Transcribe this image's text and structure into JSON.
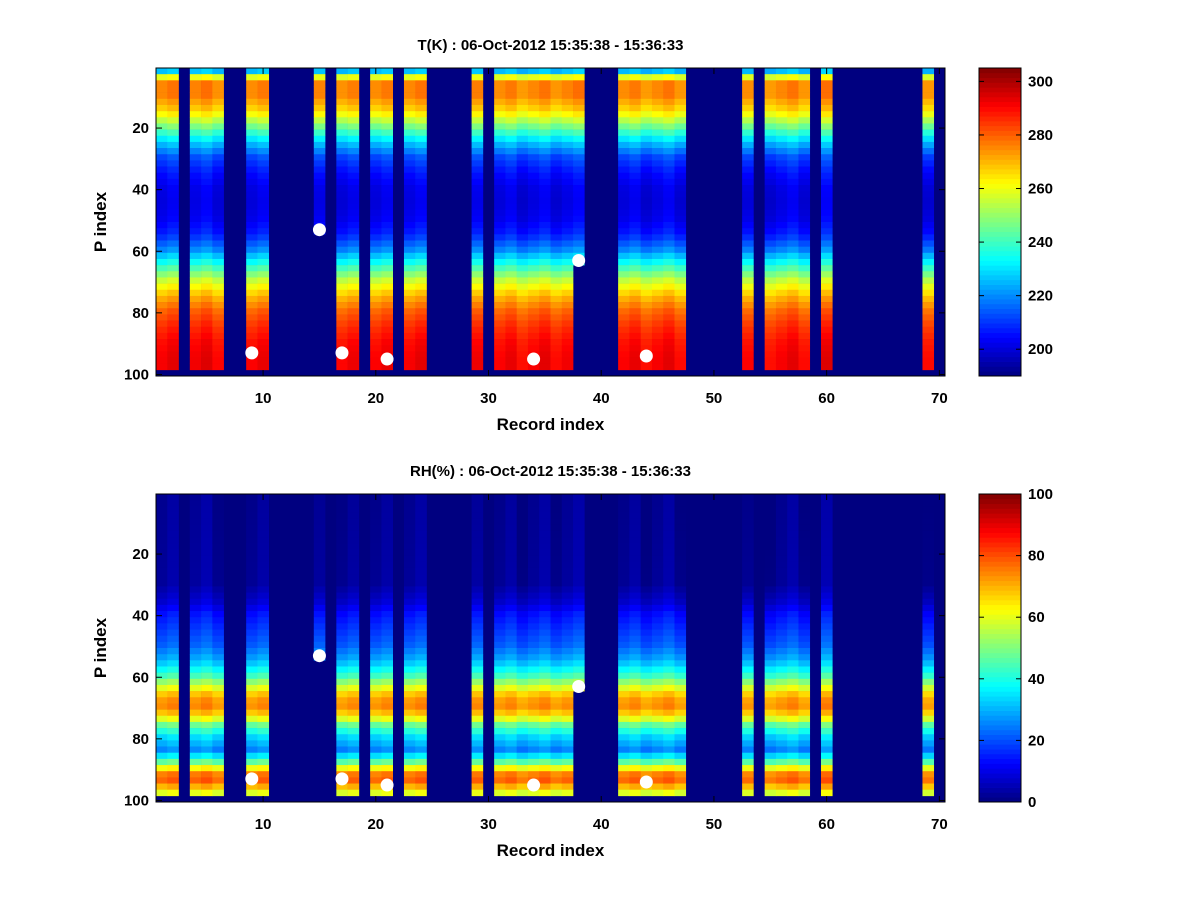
{
  "chart_data": [
    {
      "type": "heatmap",
      "title": "T(K) : 06-Oct-2012 15:35:38 - 15:36:33",
      "xlabel": "Record index",
      "ylabel": "P index",
      "xlim": [
        0.5,
        70.5
      ],
      "ylim": [
        0.5,
        100.5
      ],
      "y_reversed": true,
      "xticks": [
        10,
        20,
        30,
        40,
        50,
        60,
        70
      ],
      "yticks": [
        20,
        40,
        60,
        80,
        100
      ],
      "colormap": "jet",
      "colorbar": {
        "range": [
          190,
          305
        ],
        "ticks": [
          200,
          220,
          240,
          260,
          280,
          300
        ]
      },
      "fill_value": 190,
      "valid_records": [
        1,
        2,
        4,
        5,
        6,
        9,
        10,
        15,
        17,
        18,
        20,
        21,
        23,
        24,
        29,
        31,
        32,
        33,
        34,
        35,
        36,
        37,
        38,
        42,
        43,
        44,
        45,
        46,
        47,
        53,
        55,
        56,
        57,
        58,
        60,
        69
      ],
      "record_top_level": {
        "15": 1,
        "38": 1
      },
      "record_bottom_level": {
        "15": 53,
        "38": 63
      },
      "profile_levels": [
        1,
        5,
        10,
        15,
        20,
        25,
        30,
        35,
        40,
        45,
        50,
        55,
        60,
        65,
        70,
        75,
        80,
        85,
        90,
        95,
        98
      ],
      "profile_values": [
        210,
        276,
        276,
        266,
        247,
        228,
        213,
        206,
        202,
        201,
        203,
        208,
        220,
        238,
        256,
        270,
        280,
        286,
        290,
        292,
        292
      ],
      "markers": [
        {
          "record": 9,
          "level": 93
        },
        {
          "record": 15,
          "level": 53
        },
        {
          "record": 17,
          "level": 93
        },
        {
          "record": 21,
          "level": 95
        },
        {
          "record": 34,
          "level": 95
        },
        {
          "record": 38,
          "level": 63
        },
        {
          "record": 44,
          "level": 94
        }
      ]
    },
    {
      "type": "heatmap",
      "title": "RH(%) : 06-Oct-2012 15:35:38 - 15:36:33",
      "xlabel": "Record index",
      "ylabel": "P index",
      "xlim": [
        0.5,
        70.5
      ],
      "ylim": [
        0.5,
        100.5
      ],
      "y_reversed": true,
      "xticks": [
        10,
        20,
        30,
        40,
        50,
        60,
        70
      ],
      "yticks": [
        20,
        40,
        60,
        80,
        100
      ],
      "colormap": "jet",
      "colorbar": {
        "range": [
          0,
          100
        ],
        "ticks": [
          0,
          20,
          40,
          60,
          80,
          100
        ]
      },
      "fill_value": 0,
      "valid_records": [
        1,
        2,
        4,
        5,
        6,
        9,
        10,
        15,
        17,
        18,
        20,
        21,
        23,
        24,
        29,
        31,
        32,
        33,
        34,
        35,
        36,
        37,
        38,
        42,
        43,
        44,
        45,
        46,
        47,
        53,
        55,
        56,
        57,
        58,
        60,
        69
      ],
      "record_top_level": {
        "15": 1,
        "38": 1
      },
      "record_bottom_level": {
        "15": 53,
        "38": 63
      },
      "profile_levels": [
        1,
        30,
        36,
        40,
        45,
        50,
        55,
        60,
        64,
        67,
        70,
        73,
        76,
        80,
        84,
        87,
        90,
        93,
        96,
        98
      ],
      "profile_values": [
        2,
        3,
        8,
        14,
        18,
        22,
        30,
        44,
        60,
        72,
        74,
        66,
        48,
        34,
        26,
        40,
        62,
        82,
        70,
        60
      ],
      "markers": [
        {
          "record": 9,
          "level": 93
        },
        {
          "record": 15,
          "level": 53
        },
        {
          "record": 17,
          "level": 93
        },
        {
          "record": 21,
          "level": 95
        },
        {
          "record": 34,
          "level": 95
        },
        {
          "record": 38,
          "level": 63
        },
        {
          "record": 44,
          "level": 94
        }
      ]
    }
  ]
}
